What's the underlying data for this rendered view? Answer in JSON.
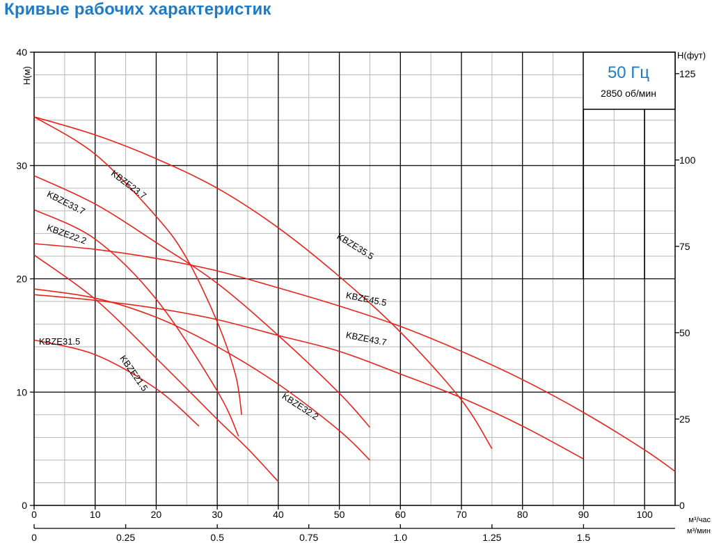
{
  "page": {
    "title": "Кривые рабочих характеристик"
  },
  "chart_data": {
    "type": "line",
    "title": "Кривые рабочих характеристик",
    "left_axis": {
      "label": "H(м)",
      "range": [
        0,
        40
      ],
      "ticks": [
        0,
        10,
        20,
        30,
        40
      ]
    },
    "right_axis": {
      "label": "H(фут)",
      "range": [
        0,
        131.2
      ],
      "ticks": [
        0,
        25,
        50,
        75,
        100,
        125
      ]
    },
    "x_axis": {
      "label": "м³/час",
      "range": [
        0,
        105
      ],
      "ticks": [
        0,
        10,
        20,
        30,
        40,
        50,
        60,
        70,
        80,
        90,
        100
      ]
    },
    "x_axis_secondary": {
      "label": "м³/мин",
      "ticks": [
        "0",
        "0.25",
        "0.5",
        "0.75",
        "1.0",
        "1.25",
        "1.5"
      ],
      "values": [
        0,
        0.25,
        0.5,
        0.75,
        1.0,
        1.25,
        1.5
      ]
    },
    "info_box": {
      "frequency": "50 Гц",
      "speed": "2850 об/мин"
    },
    "grid": true,
    "colors": {
      "curve": "#e8231c",
      "grid_major": "#000000",
      "grid_minor": "#b8b8b8",
      "accent": "#1e7bc8"
    },
    "series": [
      {
        "name": "KBZE35.5",
        "x": [
          0,
          10,
          20,
          30,
          40,
          50,
          60,
          70,
          75
        ],
        "y": [
          34.3,
          32.7,
          30.6,
          28.0,
          24.5,
          20.2,
          15.3,
          9.3,
          5.0
        ]
      },
      {
        "name": "KBZE45.5",
        "x": [
          0,
          10,
          20,
          30,
          40,
          50,
          60,
          70,
          80,
          90,
          100,
          105
        ],
        "y": [
          23.1,
          22.6,
          21.8,
          20.7,
          19.2,
          17.6,
          15.8,
          13.6,
          11.1,
          8.2,
          4.9,
          3.0
        ]
      },
      {
        "name": "KBZE43.7",
        "x": [
          0,
          10,
          20,
          30,
          40,
          50,
          60,
          70,
          80,
          90
        ],
        "y": [
          18.6,
          18.1,
          17.4,
          16.4,
          15.0,
          13.6,
          11.6,
          9.5,
          7.0,
          4.1
        ]
      },
      {
        "name": "KBZE33.7",
        "x": [
          0,
          10,
          20,
          30,
          40,
          50,
          55
        ],
        "y": [
          29.1,
          26.6,
          23.2,
          19.6,
          15.0,
          9.9,
          6.9
        ]
      },
      {
        "name": "KBZE23.7",
        "x": [
          0,
          10,
          20,
          25,
          30,
          33,
          34
        ],
        "y": [
          34.3,
          31.0,
          25.5,
          21.8,
          16.2,
          11.5,
          8.0
        ]
      },
      {
        "name": "KBZE22.2",
        "x": [
          0,
          10,
          20,
          30,
          33.5
        ],
        "y": [
          26.1,
          23.5,
          18.2,
          10.1,
          6.1
        ]
      },
      {
        "name": "KBZE32.2",
        "x": [
          0,
          10,
          20,
          30,
          40,
          50,
          55
        ],
        "y": [
          19.1,
          18.3,
          16.6,
          14.0,
          10.7,
          6.6,
          4.0
        ]
      },
      {
        "name": "KBZE21.5",
        "x": [
          0,
          10,
          20,
          30,
          35,
          40
        ],
        "y": [
          22.1,
          18.2,
          13.0,
          7.6,
          5.0,
          2.1
        ]
      },
      {
        "name": "KBZE31.5",
        "x": [
          0,
          10,
          20,
          27
        ],
        "y": [
          14.6,
          13.3,
          10.3,
          7.0
        ]
      }
    ],
    "labels": [
      {
        "text": "KBZE35.5",
        "x": 49.5,
        "y": 23.6,
        "angle": 32
      },
      {
        "text": "KBZE45.5",
        "x": 51.0,
        "y": 18.3,
        "angle": 11
      },
      {
        "text": "KBZE43.7",
        "x": 51.0,
        "y": 14.8,
        "angle": 11
      },
      {
        "text": "KBZE33.7",
        "x": 2.0,
        "y": 27.3,
        "angle": 27
      },
      {
        "text": "KBZE23.7",
        "x": 12.5,
        "y": 29.2,
        "angle": 37
      },
      {
        "text": "KBZE22.2",
        "x": 2.0,
        "y": 24.3,
        "angle": 20
      },
      {
        "text": "KBZE32.2",
        "x": 40.5,
        "y": 9.5,
        "angle": 33
      },
      {
        "text": "KBZE21.5",
        "x": 14.0,
        "y": 13.0,
        "angle": 55
      },
      {
        "text": "KBZE31.5",
        "x": 0.8,
        "y": 14.2,
        "angle": 0
      }
    ]
  }
}
